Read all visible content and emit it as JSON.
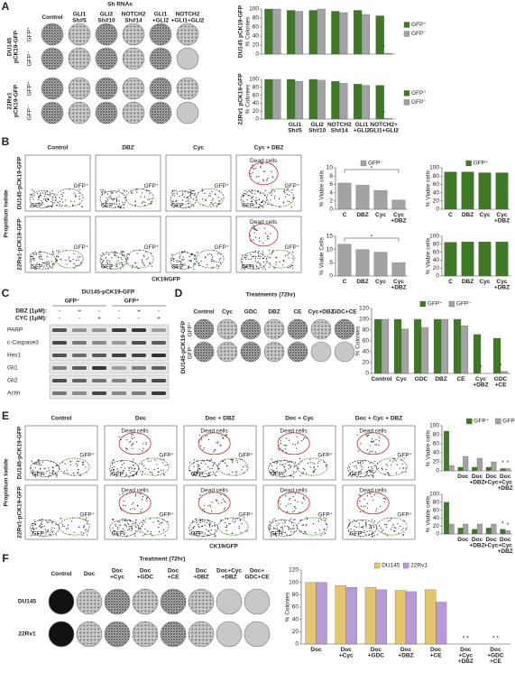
{
  "figure": {
    "A": {
      "letter": "A",
      "header": "Sh RNAs",
      "columns": [
        "Control",
        "GLI1 Sh#5",
        "GLI2 Sh#10",
        "NOTCH2 Sh#14",
        "GLI1 +GLI2",
        "NOTCH2 +GLI1+GLI2"
      ],
      "rows": [
        "DU145 pCK19-GFP",
        "22Rv1 pCK19-GFP"
      ],
      "gfp": [
        "GFP⁺",
        "GFP⁻"
      ]
    },
    "B": {
      "letter": "B",
      "columns": [
        "Control",
        "DBZ",
        "Cyc",
        "Cyc + DBZ"
      ],
      "rows": [
        "DU145-pCK19-GFP",
        "22Rv1-pCK19-GFP"
      ],
      "gates": [
        "GFP⁻",
        "GFP⁺",
        "Dead cells"
      ],
      "y_axis": "Propidium Iodide",
      "x_axis": "CK19/GFP"
    },
    "C": {
      "letter": "C",
      "title": "DU145-pCK19-GFP",
      "groups": [
        "GFP⁻",
        "GFP⁺"
      ],
      "treatments": [
        {
          "label": "DBZ (1μM):",
          "marks": [
            "-",
            "+",
            "-",
            "-",
            "+",
            "-"
          ]
        },
        {
          "label": "CYC (1μM):",
          "marks": [
            "-",
            "-",
            "+",
            "-",
            "-",
            "+"
          ]
        }
      ],
      "proteins": [
        "PARP",
        "c-Caspase3",
        "Hes1",
        "Gli1",
        "Gli2",
        "Actin"
      ]
    },
    "D": {
      "letter": "D",
      "header": "Treatments (72hr)",
      "columns": [
        "Control",
        "Cyc",
        "GDC",
        "DBZ",
        "CE",
        "Cyc+DBZ",
        "GDC+CE"
      ],
      "row": "DU145-pCK19-GFP",
      "gfp": [
        "GFP⁺",
        "GFP⁻"
      ]
    },
    "E": {
      "letter": "E",
      "columns": [
        "Control",
        "Doc",
        "Doc + DBZ",
        "Doc + Cyc",
        "Doc + Cyc + DBZ"
      ],
      "rows": [
        "DU145-pCK19-GFP",
        "22Rv1-pCK19-GFP"
      ],
      "gates": [
        "GFP⁻",
        "GFP⁺",
        "Dead cells"
      ],
      "y_axis": "Propidium Iodide",
      "x_axis": "CK19/GFP"
    },
    "F": {
      "letter": "F",
      "header": "Treatment (72hr)",
      "columns": [
        "Control",
        "Doc",
        "Doc +Cyc",
        "Doc +GDC",
        "Doc +CE",
        "Doc +DBZ",
        "Doc+Cyc +DBZ",
        "Doc+ GDC+CE"
      ],
      "rows": [
        "DU145",
        "22Rv1"
      ]
    }
  },
  "chart_data": [
    {
      "type": "bar",
      "ylabel": [
        "DU145 pCK19-GFP",
        "% Colonies"
      ],
      "categories": [
        null,
        null,
        null,
        null,
        null,
        null
      ],
      "series": [
        {
          "name": "GFP⁺",
          "color": "#3d7a23",
          "values": [
            100,
            97,
            97,
            95,
            97,
            85
          ]
        },
        {
          "name": "GFP⁻",
          "color": "#a3a3a3",
          "values": [
            100,
            95,
            100,
            92,
            88,
            2
          ]
        }
      ],
      "ylim": [
        0,
        100
      ],
      "yticks": [
        0,
        20,
        40,
        60,
        80,
        100
      ],
      "legend": "right",
      "annotations": [
        "*"
      ]
    },
    {
      "type": "bar",
      "ylabel": [
        "22Rv1 pCK19-GFP",
        "% Colonies"
      ],
      "categories": [
        null,
        "GLI1 Sh#5",
        "GLI2 Sh#10",
        "NOTCH2 Sh#14",
        "GLI1 +GLI2",
        "NOTCH2+ GLI1+GLI2"
      ],
      "series": [
        {
          "name": "GFP⁺",
          "color": "#3d7a23",
          "values": [
            100,
            100,
            100,
            95,
            88,
            85
          ]
        },
        {
          "name": "GFP⁻",
          "color": "#a3a3a3",
          "values": [
            100,
            95,
            98,
            90,
            85,
            2
          ]
        }
      ],
      "ylim": [
        0,
        100
      ],
      "yticks": [
        0,
        20,
        40,
        60,
        80,
        100
      ],
      "legend": "right",
      "annotations": [
        "*"
      ]
    },
    {
      "type": "bar",
      "ylabel": [
        "% Viable cells"
      ],
      "categories": [
        "C",
        "DBZ",
        "Cyc",
        "Cyc +DBZ"
      ],
      "series": [
        {
          "name": "GFP⁻",
          "color": "#a3a3a3",
          "values": [
            6.3,
            5.8,
            4.5,
            2.2
          ]
        }
      ],
      "ylim": [
        0,
        10
      ],
      "yticks": [
        0,
        2,
        4,
        6,
        8,
        10
      ],
      "legend": "top",
      "annotations": [
        "*"
      ]
    },
    {
      "type": "bar",
      "ylabel": [
        "% Viable cells"
      ],
      "categories": [
        "C",
        "DBZ",
        "Cyc",
        "Cyc +DBZ"
      ],
      "series": [
        {
          "name": "GFP⁺",
          "color": "#3d7a23",
          "values": [
            90,
            90,
            88,
            88
          ]
        }
      ],
      "ylim": [
        0,
        100
      ],
      "yticks": [
        0,
        20,
        40,
        60,
        80,
        100
      ],
      "legend": "top"
    },
    {
      "type": "bar",
      "ylabel": [
        "% Viable Cells"
      ],
      "categories": [
        "C",
        "DBZ",
        "Cyc",
        "Cyc +DBZ"
      ],
      "series": [
        {
          "name": "GFP⁻",
          "color": "#a3a3a3",
          "values": [
            12,
            10,
            9,
            5
          ]
        }
      ],
      "ylim": [
        0,
        15
      ],
      "yticks": [
        0,
        5,
        10,
        15
      ],
      "annotations": [
        "*"
      ]
    },
    {
      "type": "bar",
      "ylabel": [
        "% Viable cells"
      ],
      "categories": [
        "C",
        "DBZ",
        "Cyc",
        "Cyc +DBZ"
      ],
      "series": [
        {
          "name": "GFP⁺",
          "color": "#3d7a23",
          "values": [
            85,
            86,
            86,
            86
          ]
        }
      ],
      "ylim": [
        0,
        100
      ],
      "yticks": [
        0,
        20,
        40,
        60,
        80,
        100
      ]
    },
    {
      "type": "bar",
      "ylabel": [
        "% Colonies"
      ],
      "categories": [
        "Control",
        "Cyc",
        "GDC",
        "DBZ",
        "CE",
        "Cyc +DBZ",
        "GDC +CE"
      ],
      "series": [
        {
          "name": "GFP⁺",
          "color": "#3d7a23",
          "values": [
            100,
            100,
            100,
            100,
            100,
            72,
            65
          ]
        },
        {
          "name": "GFP⁻",
          "color": "#a3a3a3",
          "values": [
            100,
            82,
            85,
            100,
            88,
            0,
            4
          ]
        }
      ],
      "ylim": [
        0,
        120
      ],
      "yticks": [
        0,
        20,
        40,
        60,
        80,
        100,
        120
      ],
      "legend": "top",
      "annotations": [
        "*",
        "*"
      ]
    },
    {
      "type": "bar",
      "ylabel": [
        "% Viable cells"
      ],
      "categories": [
        null,
        "Doc",
        "Doc +DBZ",
        "Doc +Cyc",
        "Doc +Cyc +DBZ"
      ],
      "series": [
        {
          "name": "GFP⁺",
          "color": "#3d7a23",
          "values": [
            88,
            8,
            8,
            8,
            5
          ]
        },
        {
          "name": "GFP⁻",
          "color": "#a3a3a3",
          "values": [
            12,
            32,
            28,
            20,
            5
          ]
        }
      ],
      "ylim": [
        0,
        100
      ],
      "yticks": [
        0,
        20,
        40,
        60,
        80,
        100
      ],
      "legend": "top",
      "annotations": [
        "*",
        "*"
      ]
    },
    {
      "type": "bar",
      "ylabel": [
        "% Viable cells"
      ],
      "categories": [
        null,
        "Doc",
        "Doc +DBZ",
        "Doc +Cyc",
        "Doc +Cyc +DBZ"
      ],
      "series": [
        {
          "name": "GFP⁺",
          "color": "#3d7a23",
          "values": [
            80,
            15,
            12,
            15,
            12
          ]
        },
        {
          "name": "GFP⁻",
          "color": "#a3a3a3",
          "values": [
            25,
            25,
            25,
            25,
            8
          ]
        }
      ],
      "ylim": [
        0,
        100
      ],
      "yticks": [
        0,
        20,
        40,
        60,
        80,
        100
      ],
      "annotations": [
        "*",
        "*"
      ]
    },
    {
      "type": "bar",
      "ylabel": [
        "% Colonies"
      ],
      "categories": [
        "Doc",
        "Doc +Cyc",
        "Doc +GDC",
        "Doc +DBZ",
        "Doc +CE",
        "Doc +Cyc +DBZ",
        "Doc +GDC +CE"
      ],
      "series": [
        {
          "name": "DU145",
          "color": "#e6c56f",
          "values": [
            100,
            95,
            92,
            87,
            88,
            0,
            0
          ]
        },
        {
          "name": "22Rv1",
          "color": "#b69bd6",
          "values": [
            100,
            92,
            88,
            85,
            68,
            0,
            0
          ]
        }
      ],
      "ylim": [
        0,
        120
      ],
      "yticks": [
        0,
        20,
        40,
        60,
        80,
        100,
        120
      ],
      "legend": "top",
      "annotations": [
        "* *",
        "* *"
      ]
    }
  ]
}
